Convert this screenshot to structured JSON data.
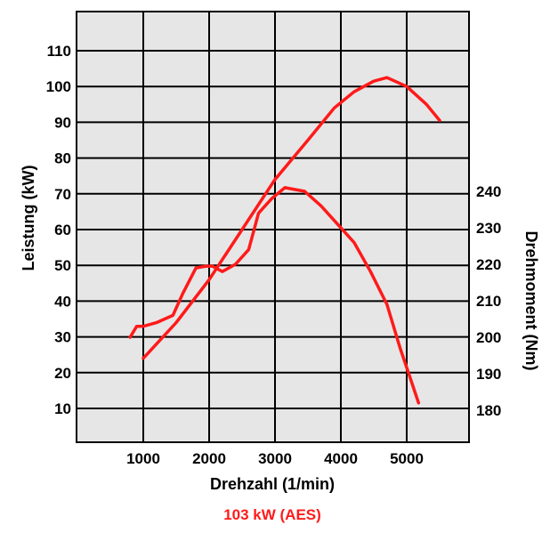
{
  "chart_data": {
    "type": "line",
    "title": "",
    "xlabel": "Drehzahl (1/min)",
    "ylabel_left": "Leistung (kW)",
    "ylabel_right": "Drehmoment (Nm)",
    "caption": "103 kW (AES)",
    "xlim": [
      0,
      5500
    ],
    "ylim_left": [
      0,
      120
    ],
    "ylim_right": [
      150,
      270
    ],
    "x_ticks": [
      1000,
      2000,
      3000,
      4000,
      5000
    ],
    "y_left_ticks": [
      10,
      20,
      30,
      40,
      50,
      60,
      70,
      80,
      90,
      100,
      110
    ],
    "y_right_ticks": [
      180,
      190,
      200,
      210,
      220,
      230,
      240
    ],
    "grid": true,
    "legend": "none",
    "colors": {
      "line": "#ff1a1a",
      "caption": "#ff1a1a",
      "plot_bg": "#e6e6e6",
      "grid": "#000000"
    },
    "series": [
      {
        "axis": "left",
        "x": [
          1000,
          1500,
          2000,
          2500,
          3000,
          3500,
          3900,
          4200,
          4500,
          4700,
          5000,
          5300,
          5500
        ],
        "values": [
          24,
          34,
          46,
          60,
          74,
          85,
          94,
          98.5,
          101.5,
          102.5,
          100,
          95,
          90.5
        ]
      },
      {
        "axis": "right",
        "x": [
          800,
          900,
          1000,
          1200,
          1450,
          1600,
          1800,
          1950,
          2050,
          2200,
          2400,
          2600,
          2750,
          2950,
          3150,
          3450,
          3700,
          3950,
          4200,
          4450,
          4700,
          4900,
          5050,
          5180
        ],
        "values": [
          200,
          203,
          203,
          204,
          206,
          212,
          219,
          219.5,
          219.5,
          218,
          220,
          224,
          234,
          238,
          241,
          240,
          236,
          231,
          226,
          218,
          209,
          197,
          189,
          182
        ]
      }
    ]
  }
}
